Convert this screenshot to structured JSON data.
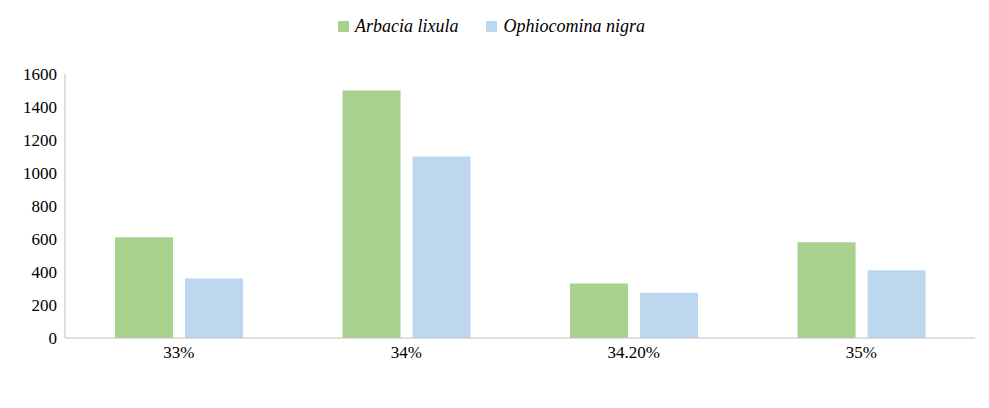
{
  "chart_data": {
    "type": "bar",
    "categories": [
      "33%",
      "34%",
      "34.20%",
      "35%"
    ],
    "series": [
      {
        "name": "Arbacia lixula",
        "color": "#a9d18e",
        "values": [
          610,
          1500,
          330,
          580
        ]
      },
      {
        "name": "Ophiocomina nigra",
        "color": "#bdd7ee",
        "values": [
          360,
          1100,
          275,
          410
        ]
      }
    ],
    "ylim": [
      0,
      1600
    ],
    "yticks": [
      0,
      200,
      400,
      600,
      800,
      1000,
      1200,
      1400,
      1600
    ],
    "grid": false,
    "legend": "top"
  }
}
